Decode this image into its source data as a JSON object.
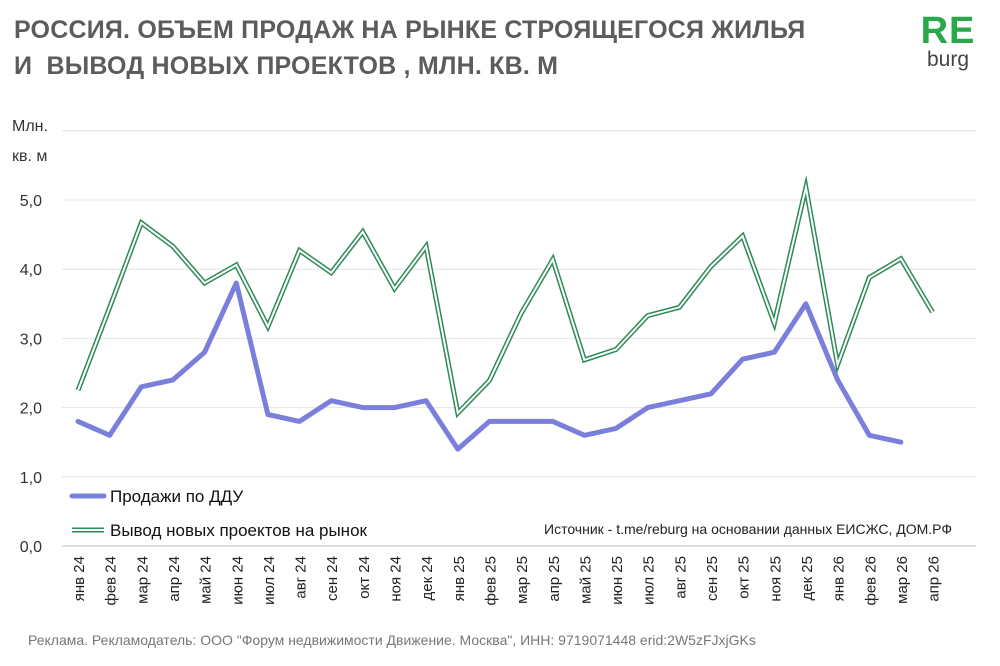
{
  "title_lines": [
    "РОССИЯ. ОБЪЕМ ПРОДАЖ НА РЫНКЕ СТРОЯЩЕГОСЯ ЖИЛЬЯ",
    "И  ВЫВОД НОВЫХ ПРОЕКТОВ , МЛН. КВ. М"
  ],
  "logo": {
    "top": "RE",
    "bottom": "burg",
    "colors": {
      "top": "#2aa84a",
      "bottom": "#444444"
    }
  },
  "unit_lines": [
    "Млн.",
    "кв. м"
  ],
  "source": "Источник - t.me/reburg на основании данных ЕИСЖС, ДОМ.РФ",
  "footnote": "Реклама. Рекламодатель: ООО \"Форум недвижимости Движение. Москва\", ИНН: 9719071448 erid:2W5zFJxjGKs",
  "chart_data": {
    "type": "line",
    "categories": [
      "янв 24",
      "фев 24",
      "мар 24",
      "апр 24",
      "май 24",
      "июн 24",
      "июл 24",
      "авг 24",
      "сен 24",
      "окт 24",
      "ноя 24",
      "дек 24",
      "янв 25",
      "фев 25",
      "мар 25",
      "апр 25",
      "май 25",
      "июн 25",
      "июл 25",
      "авг 25",
      "сен 25",
      "окт 25",
      "ноя 25",
      "дек 25",
      "янв 26",
      "фев 26",
      "мар 26",
      "апр 26"
    ],
    "ylim": [
      0,
      6
    ],
    "yticks": [
      0,
      1,
      2,
      3,
      4,
      5
    ],
    "ytick_labels": [
      "0,0",
      "1,0",
      "2,0",
      "3,0",
      "4,0",
      "5,0"
    ],
    "grid": true,
    "legend_position": "bottom-left",
    "series": [
      {
        "name": "Продажи по ДДУ",
        "color": "#7b7fdc",
        "values": [
          1.8,
          1.6,
          2.3,
          2.4,
          2.8,
          3.8,
          1.9,
          1.8,
          2.1,
          2.0,
          2.0,
          2.1,
          1.4,
          1.8,
          1.8,
          1.8,
          1.6,
          1.7,
          2.0,
          2.1,
          2.2,
          2.7,
          2.8,
          3.5,
          2.4,
          1.6,
          1.5,
          null
        ]
      },
      {
        "name": "Вывод новых проектов на рынок",
        "color": "#2e8b57",
        "values": [
          2.25,
          3.45,
          4.67,
          4.33,
          3.8,
          4.06,
          3.17,
          4.27,
          3.95,
          4.54,
          3.72,
          4.33,
          1.92,
          2.39,
          3.36,
          4.14,
          2.69,
          2.84,
          3.33,
          3.45,
          4.04,
          4.48,
          3.22,
          5.18,
          2.62,
          3.88,
          4.15,
          3.38
        ]
      }
    ]
  }
}
